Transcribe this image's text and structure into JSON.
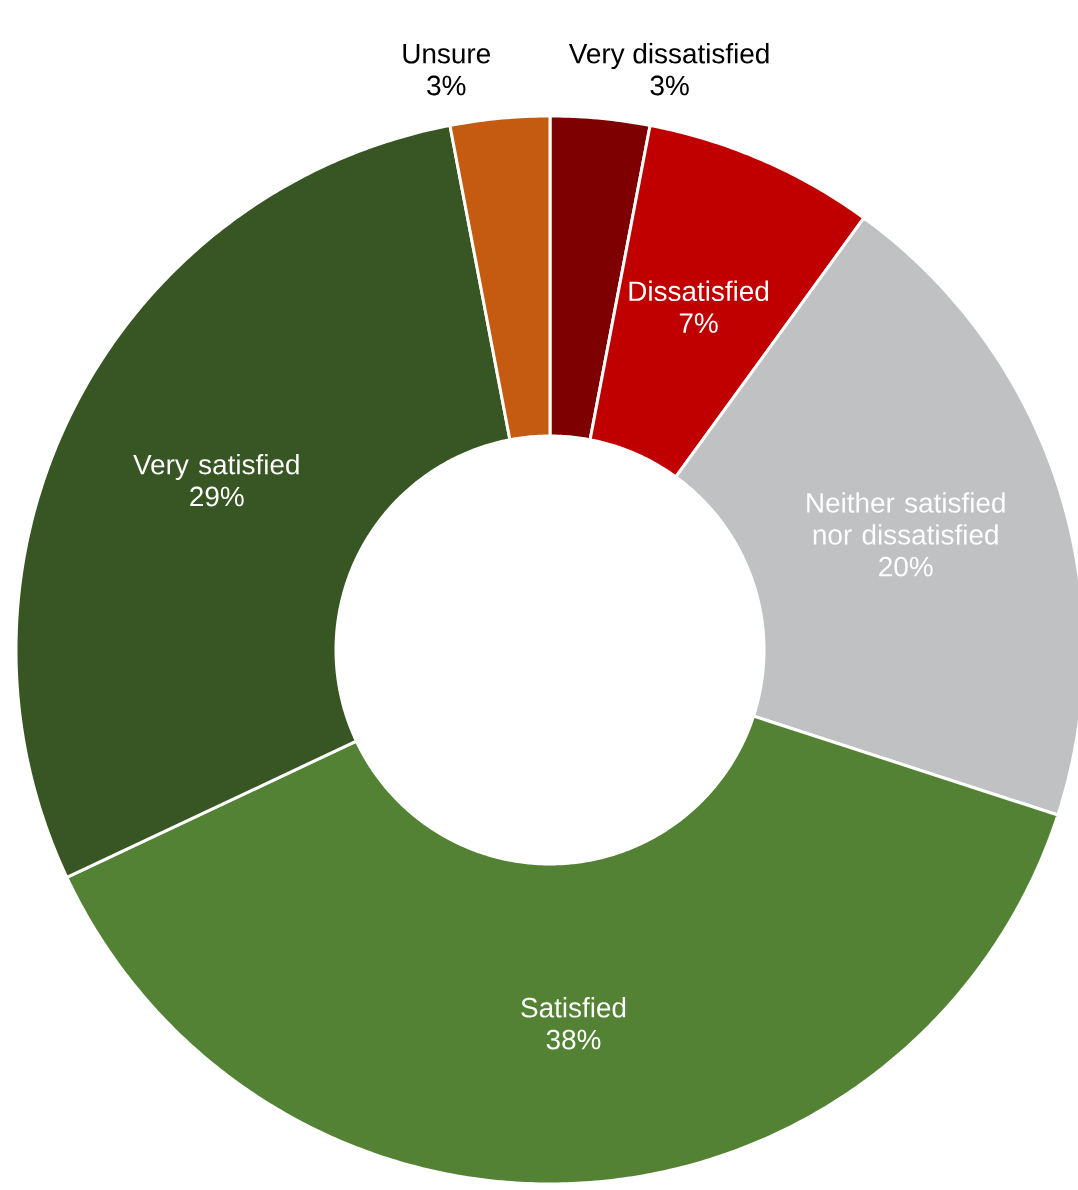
{
  "chart_data": {
    "type": "donut",
    "categories": [
      "Very dissatisfied",
      "Dissatisfied",
      "Neither satisfied nor dissatisfied",
      "Satisfied",
      "Very satisfied",
      "Unsure"
    ],
    "values": [
      3,
      7,
      20,
      38,
      29,
      3
    ],
    "value_labels": [
      "3%",
      "7%",
      "20%",
      "38%",
      "29%",
      "3%"
    ],
    "colors": [
      "#7f0000",
      "#c00000",
      "#bfc1c3",
      "#548235",
      "#375623",
      "#c55a11"
    ]
  }
}
